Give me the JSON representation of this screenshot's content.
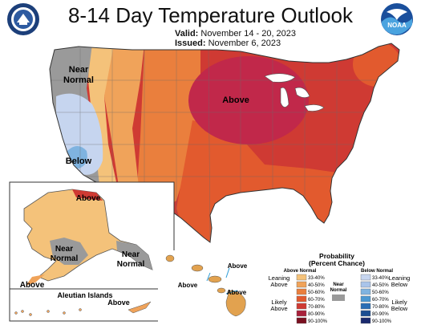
{
  "header": {
    "title": "8-14 Day Temperature Outlook",
    "valid_label": "Valid:",
    "valid_value": "November 14 - 20, 2023",
    "issued_label": "Issued:",
    "issued_value": "November 6, 2023",
    "left_logo_icon": "doc-seal-icon",
    "right_logo_icon": "noaa-logo-icon",
    "right_logo_text": "NOAA"
  },
  "map_labels": {
    "conus_above": "Above",
    "conus_near_normal_line1": "Near",
    "conus_near_normal_line2": "Normal",
    "conus_below": "Below",
    "alaska_above_north": "Above",
    "alaska_near_west_line1": "Near",
    "alaska_near_west_line2": "Normal",
    "alaska_near_east_line1": "Near",
    "alaska_near_east_line2": "Normal",
    "alaska_above_south": "Above",
    "aleutian_title": "Aleutian Islands",
    "aleutian_above": "Above",
    "hawaii_above_1": "Above",
    "hawaii_above_2": "Above",
    "hawaii_above_3": "Above"
  },
  "legend": {
    "title_line1": "Probability",
    "title_line2": "(Percent Chance)",
    "above_header": "Above Normal",
    "below_header": "Below Normal",
    "leaning_above_1": "Leaning",
    "leaning_above_2": "Above",
    "likely_above_1": "Likely",
    "likely_above_2": "Above",
    "near_normal_1": "Near",
    "near_normal_2": "Normal",
    "leaning_below_1": "Leaning",
    "leaning_below_2": "Below",
    "likely_below_1": "Likely",
    "likely_below_2": "Below",
    "ranges": [
      "33-40%",
      "40-50%",
      "50-60%",
      "60-70%",
      "70-80%",
      "80-90%",
      "90-100%"
    ],
    "above_colors": [
      "#f4c27a",
      "#f0a35a",
      "#ea7f3d",
      "#e25a2e",
      "#cf3a33",
      "#a8203a",
      "#7a1020"
    ],
    "below_colors": [
      "#c6d5ef",
      "#a9c4ea",
      "#7fb3e0",
      "#4b98d2",
      "#2a6eb5",
      "#1c4e92",
      "#1a2a6e"
    ],
    "near_color": "#9a9a9a"
  }
}
